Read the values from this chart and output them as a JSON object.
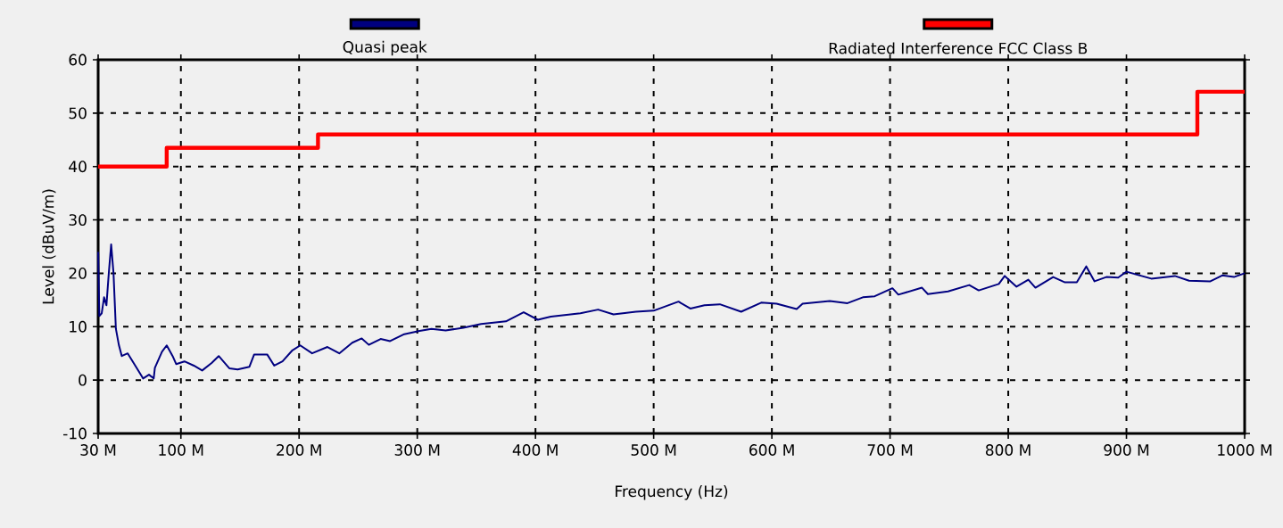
{
  "chart_data": {
    "type": "line",
    "xlabel": "Frequency (Hz)",
    "ylabel": "Level (dBuV/m)",
    "xlim": [
      30000000,
      1000000000
    ],
    "ylim": [
      -10,
      60
    ],
    "xticks": [
      {
        "value": 30000000,
        "label": "30 M"
      },
      {
        "value": 100000000,
        "label": "100 M"
      },
      {
        "value": 200000000,
        "label": "200 M"
      },
      {
        "value": 300000000,
        "label": "300 M"
      },
      {
        "value": 400000000,
        "label": "400 M"
      },
      {
        "value": 500000000,
        "label": "500 M"
      },
      {
        "value": 600000000,
        "label": "600 M"
      },
      {
        "value": 700000000,
        "label": "700 M"
      },
      {
        "value": 800000000,
        "label": "800 M"
      },
      {
        "value": 900000000,
        "label": "900 M"
      },
      {
        "value": 1000000000,
        "label": "1000 M"
      }
    ],
    "yticks": [
      -10,
      0,
      10,
      20,
      30,
      40,
      50,
      60
    ],
    "grid": true,
    "legend": "top",
    "series": [
      {
        "name": "Quasi peak",
        "color": "#000080",
        "x": [
          30000000,
          31000000,
          33000000,
          35000000,
          37000000,
          39000000,
          41000000,
          43000000,
          45000000,
          47500000,
          50000000,
          55000000,
          62000000,
          68000000,
          73000000,
          77000000,
          78000000,
          84000000,
          88000000,
          93000000,
          96000000,
          103000000,
          111000000,
          118000000,
          126000000,
          132000000,
          141000000,
          148000000,
          158000000,
          162000000,
          173000000,
          179000000,
          186000000,
          194000000,
          201000000,
          211000000,
          224000000,
          234000000,
          245000000,
          253000000,
          259000000,
          269000000,
          277000000,
          289000000,
          302000000,
          312000000,
          324000000,
          339000000,
          354000000,
          375000000,
          390000000,
          402000000,
          413000000,
          438000000,
          453000000,
          466000000,
          485000000,
          500000000,
          521000000,
          531000000,
          543000000,
          556000000,
          574000000,
          591000000,
          604000000,
          621000000,
          626000000,
          649000000,
          664000000,
          677000000,
          687000000,
          702000000,
          707000000,
          727000000,
          732000000,
          749000000,
          767000000,
          775000000,
          792000000,
          797000000,
          807000000,
          817000000,
          823000000,
          838000000,
          848000000,
          858000000,
          866000000,
          873000000,
          883000000,
          893000000,
          900000000,
          921000000,
          941000000,
          953000000,
          971000000,
          981000000,
          991000000,
          1000000000
        ],
        "values": [
          24,
          12,
          12.5,
          15.5,
          14,
          20,
          25.4,
          20,
          9.6,
          6.6,
          4.5,
          5,
          2.5,
          0.3,
          1,
          0.3,
          2.3,
          5.3,
          6.5,
          4.5,
          3,
          3.5,
          2.7,
          1.8,
          3.2,
          4.5,
          2.2,
          2,
          2.5,
          4.8,
          4.8,
          2.7,
          3.5,
          5.5,
          6.5,
          5,
          6.2,
          5,
          7,
          7.8,
          6.6,
          7.7,
          7.3,
          8.6,
          9.2,
          9.6,
          9.3,
          9.8,
          10.5,
          11,
          12.7,
          11.3,
          11.9,
          12.5,
          13.2,
          12.3,
          12.8,
          13,
          14.7,
          13.4,
          14,
          14.2,
          12.8,
          14.5,
          14.3,
          13.3,
          14.3,
          14.8,
          14.4,
          15.5,
          15.7,
          17.2,
          16,
          17.3,
          16.1,
          16.6,
          17.8,
          16.8,
          18,
          19.5,
          17.5,
          18.8,
          17.3,
          19.3,
          18.3,
          18.3,
          21.3,
          18.5,
          19.3,
          19.2,
          20.3,
          19,
          19.5,
          18.6,
          18.5,
          19.6,
          19.3,
          20
        ]
      },
      {
        "name": "Radiated Interference FCC Class B",
        "type": "step",
        "color": "#ff0000",
        "x": [
          30000000,
          88000000,
          216000000,
          960000000,
          1000000000
        ],
        "values": [
          40,
          43.5,
          46,
          54,
          54
        ]
      }
    ]
  }
}
